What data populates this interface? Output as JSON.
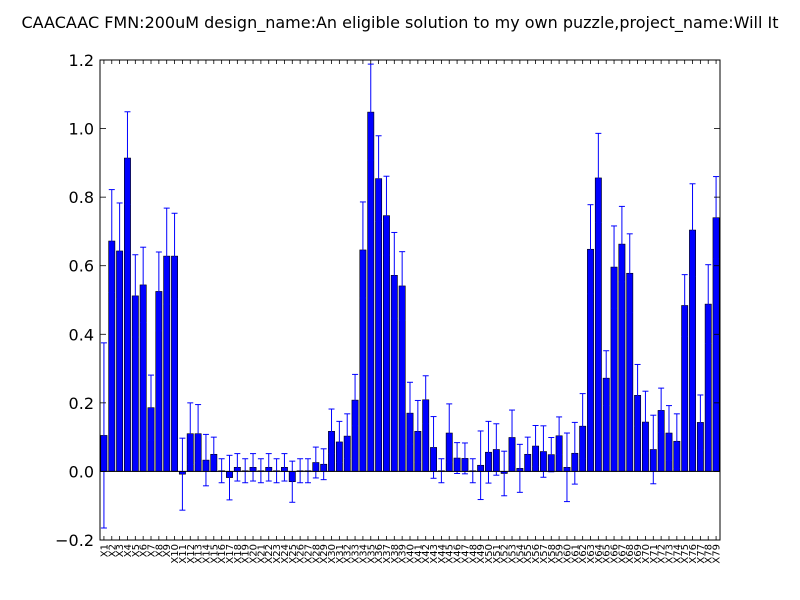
{
  "chart_data": {
    "type": "bar",
    "title": "CAACAAC  FMN:200uM  design_name:An eligible solution to my own puzzle,project_name:Will It",
    "xlabel": "",
    "ylabel": "",
    "ylim": [
      -0.2,
      1.2
    ],
    "yticks": [
      "−0.2",
      "0.0",
      "0.2",
      "0.4",
      "0.6",
      "0.8",
      "1.0",
      "1.2"
    ],
    "ytick_values": [
      -0.2,
      0.0,
      0.2,
      0.4,
      0.6,
      0.8,
      1.0,
      1.2
    ],
    "grid": false,
    "bar_color": "#0000ff",
    "error_color": "#0000ff",
    "categories": [
      "X1",
      "X2",
      "X3",
      "X4",
      "X5",
      "X6",
      "X7",
      "X8",
      "X9",
      "X10",
      "X11",
      "X12",
      "X13",
      "X14",
      "X15",
      "X16",
      "X17",
      "X18",
      "X19",
      "X20",
      "X21",
      "X22",
      "X23",
      "X24",
      "X25",
      "X26",
      "X27",
      "X28",
      "X29",
      "X30",
      "X31",
      "X32",
      "X33",
      "X34",
      "X35",
      "X36",
      "X37",
      "X38",
      "X39",
      "X40",
      "X41",
      "X42",
      "X43",
      "X44",
      "X45",
      "X46",
      "X47",
      "X48",
      "X49",
      "X50",
      "X51",
      "X52",
      "X53",
      "X54",
      "X55",
      "X56",
      "X57",
      "X58",
      "X59",
      "X60",
      "X61",
      "X62",
      "X63",
      "X64",
      "X65",
      "X66",
      "X67",
      "X68",
      "X69",
      "X70",
      "X71",
      "X72",
      "X73",
      "X74",
      "X75",
      "X76",
      "X77",
      "X78",
      "X79"
    ],
    "values": [
      0.105,
      0.672,
      0.643,
      0.914,
      0.512,
      0.544,
      0.186,
      0.525,
      0.628,
      0.628,
      -0.008,
      0.11,
      0.11,
      0.033,
      0.05,
      0.002,
      -0.018,
      0.012,
      0.002,
      0.012,
      0.002,
      0.012,
      0.002,
      0.012,
      -0.03,
      0.002,
      0.002,
      0.026,
      0.021,
      0.117,
      0.086,
      0.103,
      0.208,
      0.646,
      1.048,
      0.854,
      0.746,
      0.572,
      0.541,
      0.17,
      0.117,
      0.209,
      0.07,
      0.002,
      0.112,
      0.039,
      0.038,
      0.002,
      0.018,
      0.056,
      0.064,
      -0.006,
      0.099,
      0.009,
      0.05,
      0.074,
      0.058,
      0.049,
      0.104,
      0.012,
      0.053,
      0.132,
      0.648,
      0.856,
      0.272,
      0.596,
      0.663,
      0.578,
      0.222,
      0.144,
      0.064,
      0.178,
      0.112,
      0.088,
      0.484,
      0.704,
      0.143,
      0.488,
      0.74
    ],
    "errors": [
      0.27,
      0.15,
      0.14,
      0.135,
      0.12,
      0.11,
      0.095,
      0.115,
      0.14,
      0.125,
      0.105,
      0.09,
      0.085,
      0.075,
      0.05,
      0.035,
      0.065,
      0.04,
      0.035,
      0.04,
      0.035,
      0.04,
      0.035,
      0.04,
      0.06,
      0.035,
      0.035,
      0.045,
      0.045,
      0.065,
      0.06,
      0.065,
      0.075,
      0.14,
      0.14,
      0.125,
      0.115,
      0.125,
      0.1,
      0.09,
      0.09,
      0.07,
      0.09,
      0.035,
      0.085,
      0.045,
      0.045,
      0.035,
      0.1,
      0.09,
      0.075,
      0.065,
      0.08,
      0.07,
      0.05,
      0.06,
      0.075,
      0.05,
      0.055,
      0.1,
      0.09,
      0.095,
      0.13,
      0.13,
      0.08,
      0.12,
      0.11,
      0.115,
      0.09,
      0.09,
      0.1,
      0.065,
      0.08,
      0.08,
      0.09,
      0.135,
      0.08,
      0.115,
      0.12
    ]
  }
}
